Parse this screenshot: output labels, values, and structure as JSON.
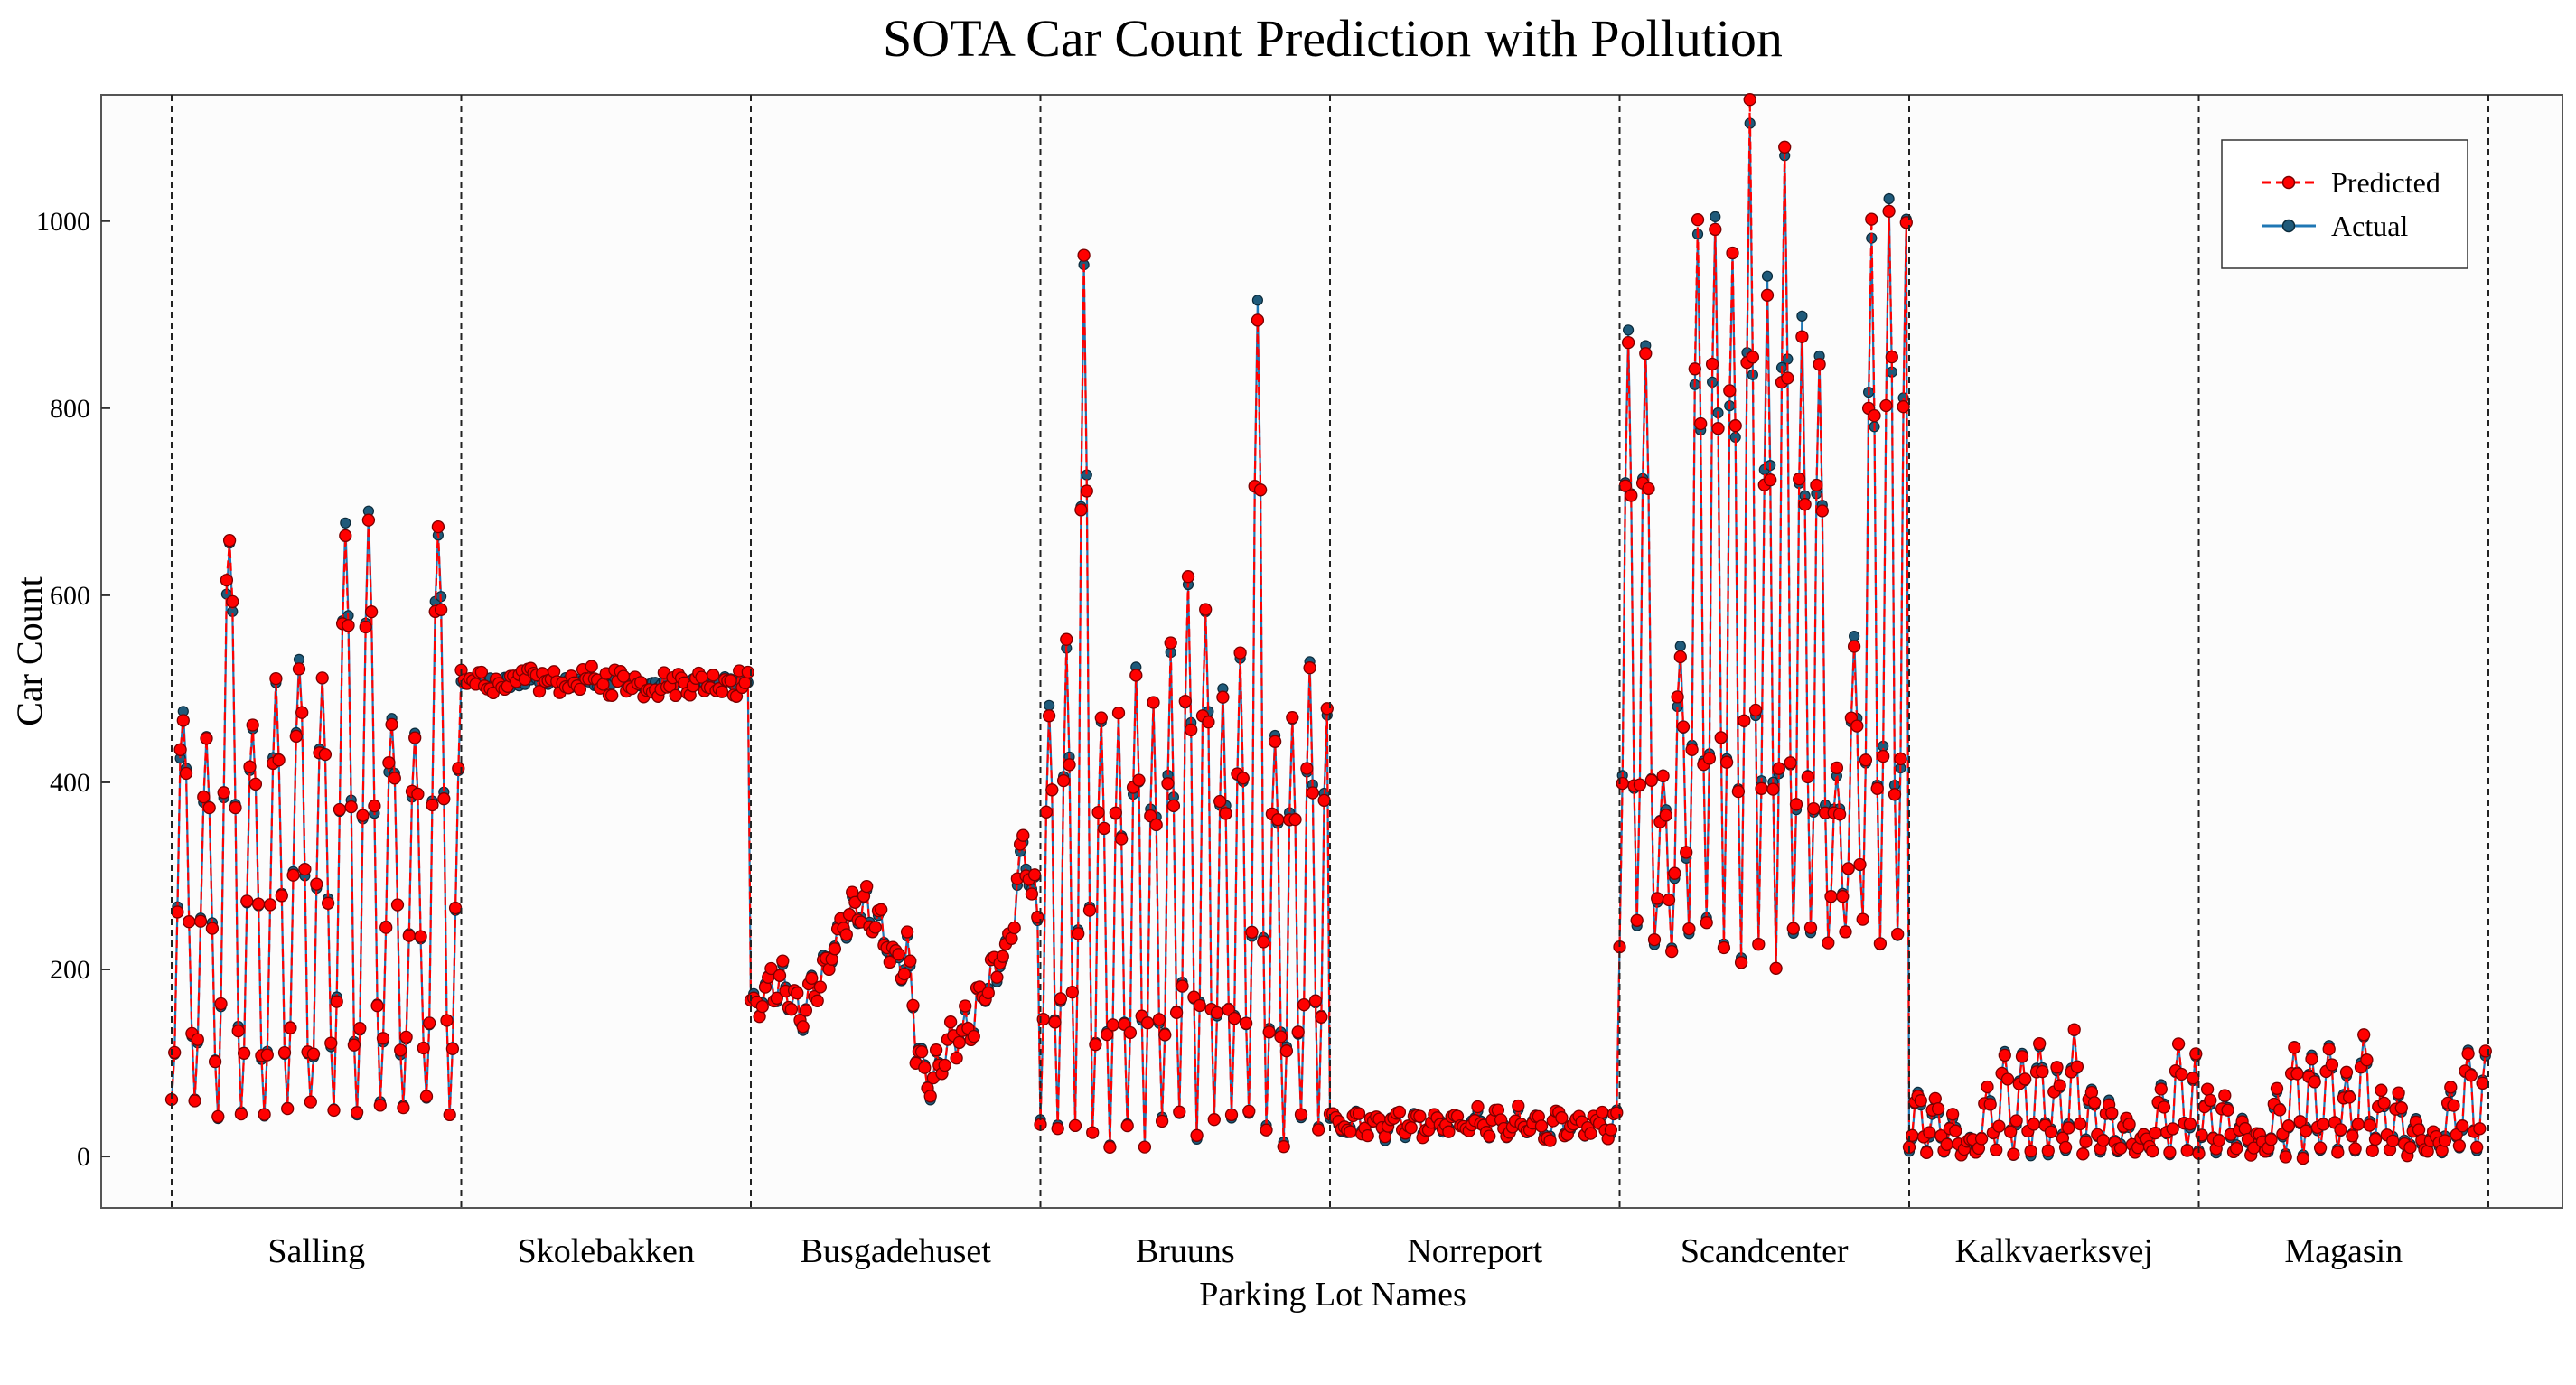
{
  "chart_data": {
    "type": "line",
    "title": "SOTA Car Count Prediction with Pollution",
    "xlabel": "Parking Lot Names",
    "ylabel": "Car Count",
    "ylim": [
      -55,
      1135
    ],
    "yticks": [
      0,
      200,
      400,
      600,
      800,
      1000
    ],
    "grid": false,
    "legend_position": "top-right",
    "categories": [
      "Salling",
      "Skolebakken",
      "Busgadehuset",
      "Bruuns",
      "Norreport",
      "Scandcenter",
      "Kalkvaerksvej",
      "Magasin"
    ],
    "segment_profiles": {
      "Salling": {
        "samples": 100,
        "period": 8,
        "low": 55,
        "highs": [
          470,
          440,
          675,
          460,
          490,
          530,
          505,
          690,
          675
        ],
        "style": "spiky"
      },
      "Skolebakken": {
        "samples": 100,
        "base": 507,
        "style": "flat"
      },
      "Busgadehuset": {
        "samples": 100,
        "anchors": [
          [
            0,
            160
          ],
          [
            0.1,
            190
          ],
          [
            0.18,
            150
          ],
          [
            0.3,
            230
          ],
          [
            0.36,
            265
          ],
          [
            0.45,
            250
          ],
          [
            0.5,
            210
          ],
          [
            0.55,
            215
          ],
          [
            0.58,
            110
          ],
          [
            0.63,
            80
          ],
          [
            0.7,
            120
          ],
          [
            0.78,
            150
          ],
          [
            0.85,
            200
          ],
          [
            0.9,
            230
          ],
          [
            0.95,
            330
          ],
          [
            1.0,
            260
          ]
        ],
        "style": "smooth"
      },
      "Bruuns": {
        "samples": 100,
        "period": 6,
        "low": 25,
        "highs": [
          490,
          550,
          925,
          460,
          460,
          520,
          490,
          525,
          620,
          600
        ],
        "style": "spiky"
      },
      "Norreport": {
        "samples": 100,
        "base": 35,
        "style": "flat_low"
      },
      "Scandcenter": {
        "samples": 100,
        "period": 6,
        "low": 230,
        "highs": [
          880,
          870,
          410,
          550,
          990,
          1010,
          980,
          1080,
          940,
          1040
        ],
        "style": "spiky"
      },
      "Kalkvaerksvej": {
        "samples": 100,
        "period": 6,
        "low": 5,
        "highs": [
          70,
          60,
          40,
          20,
          75,
          115,
          110,
          120,
          95,
          130
        ],
        "style": "spiky"
      },
      "Magasin": {
        "samples": 100,
        "period": 6,
        "low": 5,
        "highs": [
          70,
          65,
          40,
          25,
          70,
          115,
          110,
          120,
          85,
          130
        ],
        "style": "spiky"
      }
    },
    "series": [
      {
        "name": "Predicted",
        "color": "#ff0000",
        "marker_edge": "#7a0000",
        "line_style": "dashed"
      },
      {
        "name": "Actual",
        "color": "#1f77b4",
        "marker_fill": "#1f5a7a",
        "marker_edge": "#0b2a3a",
        "line_style": "solid"
      }
    ]
  }
}
